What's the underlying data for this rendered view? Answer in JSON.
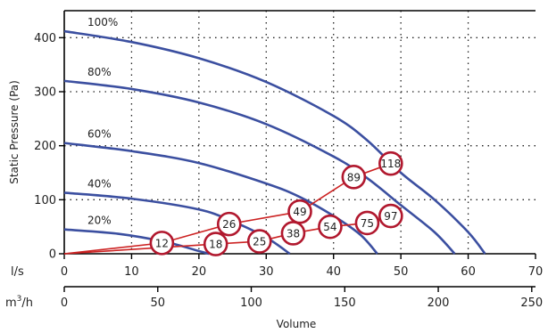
{
  "chart_data": {
    "type": "line",
    "y_axis": {
      "label": "Static Pressure (Pa)",
      "min": 0,
      "max": 450,
      "ticks": [
        0,
        100,
        200,
        300,
        400
      ]
    },
    "x_axis_ls": {
      "unit": "l/s",
      "min": 0,
      "max": 70,
      "ticks": [
        0,
        10,
        20,
        30,
        40,
        50,
        60,
        70
      ]
    },
    "x_axis_m3h": {
      "unit_base": "m",
      "unit_sup": "3",
      "unit_tail": "/h",
      "min": 0,
      "max": 252,
      "ticks": [
        0,
        50,
        100,
        150,
        200,
        250
      ]
    },
    "xlabel": "Volume",
    "grid": true,
    "series": [
      {
        "name": "100%",
        "color": "#3b4fa0",
        "points": [
          [
            0,
            412
          ],
          [
            10,
            392
          ],
          [
            20,
            362
          ],
          [
            30,
            318
          ],
          [
            40,
            255
          ],
          [
            45,
            210
          ],
          [
            50,
            150
          ],
          [
            55,
            100
          ],
          [
            60,
            40
          ],
          [
            62.5,
            0
          ]
        ]
      },
      {
        "name": "80%",
        "color": "#3b4fa0",
        "points": [
          [
            0,
            320
          ],
          [
            10,
            305
          ],
          [
            20,
            280
          ],
          [
            30,
            240
          ],
          [
            40,
            180
          ],
          [
            45,
            140
          ],
          [
            50,
            90
          ],
          [
            55,
            40
          ],
          [
            58,
            0
          ]
        ]
      },
      {
        "name": "60%",
        "color": "#3b4fa0",
        "points": [
          [
            0,
            205
          ],
          [
            10,
            190
          ],
          [
            20,
            168
          ],
          [
            30,
            130
          ],
          [
            35,
            105
          ],
          [
            40,
            70
          ],
          [
            44,
            35
          ],
          [
            46.5,
            0
          ]
        ]
      },
      {
        "name": "40%",
        "color": "#3b4fa0",
        "points": [
          [
            0,
            113
          ],
          [
            10,
            102
          ],
          [
            20,
            82
          ],
          [
            25,
            60
          ],
          [
            30,
            30
          ],
          [
            33.5,
            0
          ]
        ]
      },
      {
        "name": "20%",
        "color": "#3b4fa0",
        "points": [
          [
            0,
            45
          ],
          [
            8,
            37
          ],
          [
            15,
            22
          ],
          [
            20,
            5
          ],
          [
            21.5,
            0
          ]
        ]
      }
    ],
    "system_lines": [
      {
        "color": "#cc2222",
        "points": [
          [
            0,
            0
          ],
          [
            14.5,
            20
          ],
          [
            24.5,
            55
          ],
          [
            35,
            78
          ],
          [
            43,
            142
          ],
          [
            48.5,
            167
          ]
        ]
      },
      {
        "color": "#cc2222",
        "points": [
          [
            0,
            0
          ],
          [
            22.5,
            18
          ],
          [
            29,
            23
          ],
          [
            34,
            38
          ],
          [
            39.5,
            50
          ],
          [
            45,
            57
          ],
          [
            48.5,
            70
          ]
        ]
      }
    ],
    "markers": [
      {
        "value": "12",
        "x": 14.5,
        "y": 20
      },
      {
        "value": "26",
        "x": 24.5,
        "y": 55
      },
      {
        "value": "49",
        "x": 35,
        "y": 78
      },
      {
        "value": "89",
        "x": 43,
        "y": 142
      },
      {
        "value": "118",
        "x": 48.5,
        "y": 167
      },
      {
        "value": "18",
        "x": 22.5,
        "y": 18
      },
      {
        "value": "25",
        "x": 29,
        "y": 23
      },
      {
        "value": "38",
        "x": 34,
        "y": 38
      },
      {
        "value": "54",
        "x": 39.5,
        "y": 50
      },
      {
        "value": "75",
        "x": 45,
        "y": 57
      },
      {
        "value": "97",
        "x": 48.5,
        "y": 70
      }
    ]
  }
}
